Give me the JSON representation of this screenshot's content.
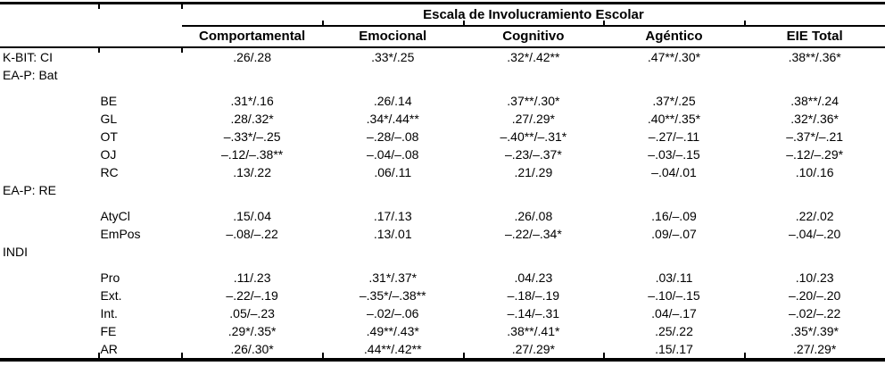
{
  "table": {
    "title": "Escala de Involucramiento Escolar",
    "columns": [
      "Comportamental",
      "Emocional",
      "Cognitivo",
      "Agéntico",
      "EIE Total"
    ],
    "rows": [
      {
        "type": "data",
        "label": "K-BIT: CI",
        "sub": "",
        "values": [
          ".26/.28",
          ".33*/.25",
          ".32*/.42**",
          ".47**/.30*",
          ".38**/.36*"
        ]
      },
      {
        "type": "group",
        "label": "EA-P: Bat",
        "sub": "",
        "values": [
          "",
          "",
          "",
          "",
          ""
        ]
      },
      {
        "type": "spacer"
      },
      {
        "type": "data",
        "label": "",
        "sub": "BE",
        "values": [
          ".31*/.16",
          ".26/.14",
          ".37**/.30*",
          ".37*/.25",
          ".38**/.24"
        ]
      },
      {
        "type": "data",
        "label": "",
        "sub": "GL",
        "values": [
          ".28/.32*",
          ".34*/.44**",
          ".27/.29*",
          ".40**/.35*",
          ".32*/.36*"
        ]
      },
      {
        "type": "data",
        "label": "",
        "sub": "OT",
        "values": [
          "–.33*/–.25",
          "–.28/–.08",
          "–.40**/–.31*",
          "–.27/–.11",
          "–.37*/–.21"
        ]
      },
      {
        "type": "data",
        "label": "",
        "sub": "OJ",
        "values": [
          "–.12/–.38**",
          "–.04/–.08",
          "–.23/–.37*",
          "–.03/–.15",
          "–.12/–.29*"
        ]
      },
      {
        "type": "data",
        "label": "",
        "sub": "RC",
        "values": [
          ".13/.22",
          ".06/.11",
          ".21/.29",
          "–.04/.01",
          ".10/.16"
        ]
      },
      {
        "type": "group",
        "label": "EA-P: RE",
        "sub": "",
        "values": [
          "",
          "",
          "",
          "",
          ""
        ]
      },
      {
        "type": "spacer"
      },
      {
        "type": "data",
        "label": "",
        "sub": "AtyCl",
        "values": [
          ".15/.04",
          ".17/.13",
          ".26/.08",
          ".16/–.09",
          ".22/.02"
        ]
      },
      {
        "type": "data",
        "label": "",
        "sub": "EmPos",
        "values": [
          "–.08/–.22",
          ".13/.01",
          "–.22/–.34*",
          ".09/–.07",
          "–.04/–.20"
        ]
      },
      {
        "type": "group",
        "label": "INDI",
        "sub": "",
        "values": [
          "",
          "",
          "",
          "",
          ""
        ]
      },
      {
        "type": "spacer"
      },
      {
        "type": "data",
        "label": "",
        "sub": "Pro",
        "values": [
          ".11/.23",
          ".31*/.37*",
          ".04/.23",
          ".03/.11",
          ".10/.23"
        ]
      },
      {
        "type": "data",
        "label": "",
        "sub": "Ext.",
        "values": [
          "–.22/–.19",
          "–.35*/–.38**",
          "–.18/–.19",
          "–.10/–.15",
          "–.20/–.20"
        ]
      },
      {
        "type": "data",
        "label": "",
        "sub": "Int.",
        "values": [
          ".05/–.23",
          "–.02/–.06",
          "–.14/–.31",
          ".04/–.17",
          "–.02/–.22"
        ]
      },
      {
        "type": "data",
        "label": "",
        "sub": "FE",
        "values": [
          ".29*/.35*",
          ".49**/.43*",
          ".38**/.41*",
          ".25/.22",
          ".35*/.39*"
        ]
      },
      {
        "type": "data",
        "label": "",
        "sub": "AR",
        "values": [
          ".26/.30*",
          ".44**/.42**",
          ".27/.29*",
          ".15/.17",
          ".27/.29*"
        ]
      }
    ]
  },
  "colors": {
    "text": "#000000",
    "background": "#ffffff",
    "rule": "#000000"
  }
}
